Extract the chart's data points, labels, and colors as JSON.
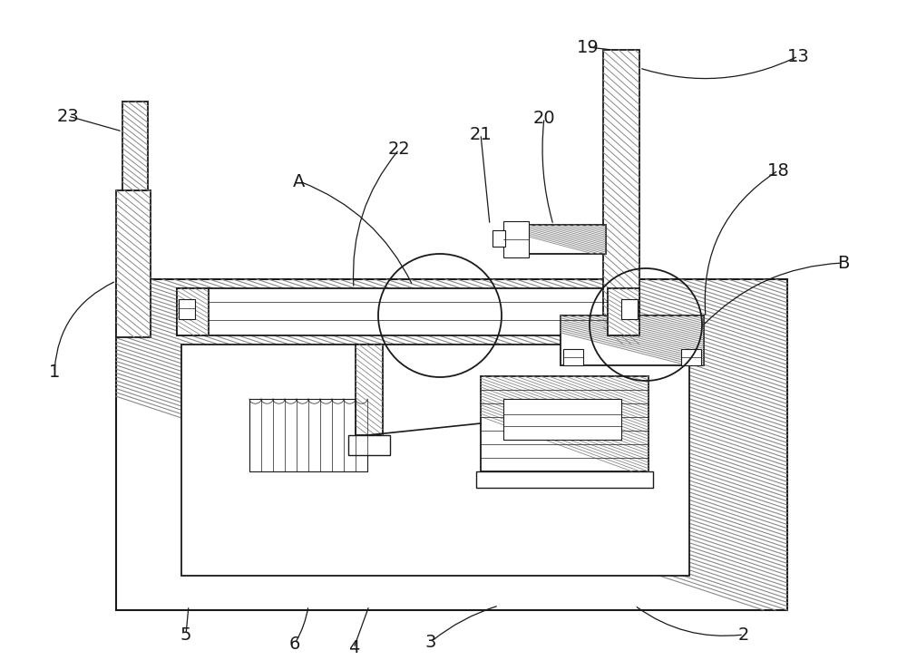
{
  "bg_color": "#ffffff",
  "line_color": "#1a1a1a",
  "hatch_color": "#777777",
  "label_color": "#1a1a1a",
  "fig_width": 10.0,
  "fig_height": 7.28
}
